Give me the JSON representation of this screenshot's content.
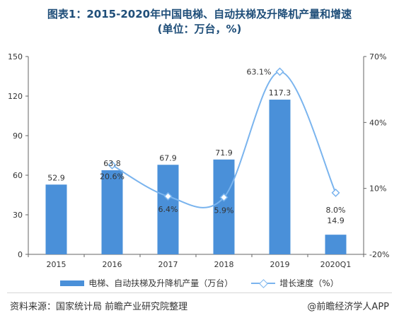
{
  "title": {
    "line1": "图表1：2015-2020年中国电梯、自动扶梯及升降机产量和增速",
    "line2": "(单位：万台，%)"
  },
  "colors": {
    "bar": "#4a90d9",
    "line": "#7ab4ee",
    "title": "#1f4e79"
  },
  "chart_data": {
    "type": "bar",
    "categories": [
      "2015",
      "2016",
      "2017",
      "2018",
      "2019",
      "2020Q1"
    ],
    "series": [
      {
        "name": "电梯、自动扶梯及升降机产量（万台）",
        "type": "bar",
        "axis": "left",
        "values": [
          52.9,
          63.8,
          67.9,
          71.9,
          117.3,
          14.9
        ],
        "labels": [
          "52.9",
          "63.8",
          "67.9",
          "71.9",
          "117.3",
          "14.9"
        ]
      },
      {
        "name": "增长速度（%）",
        "type": "line",
        "axis": "right",
        "smooth": true,
        "x": [
          "2016",
          "2017",
          "2018",
          "2019",
          "2020Q1"
        ],
        "values": [
          20.6,
          6.4,
          5.9,
          63.1,
          8.0
        ],
        "labels": [
          "20.6%",
          "6.4%",
          "5.9%",
          "63.1%",
          "8.0%"
        ]
      }
    ],
    "y_left": {
      "ylim": [
        0,
        150
      ],
      "ticks": [
        "0",
        "30",
        "60",
        "90",
        "120",
        "150"
      ]
    },
    "y_right": {
      "ylim": [
        -20,
        70
      ],
      "ticks": [
        "-20%",
        "10%",
        "40%",
        "70%"
      ]
    },
    "legend": "bottom",
    "grid": false
  },
  "source": "资料来源：国家统计局 前瞻产业研究院整理",
  "credit": "@前瞻经济学人APP"
}
